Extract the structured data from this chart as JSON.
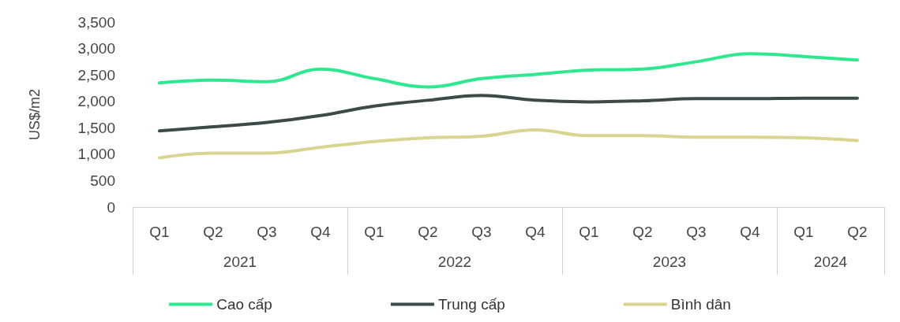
{
  "chart_data": {
    "type": "line",
    "ylabel": "US$/m2",
    "categories": [
      "Q1",
      "Q2",
      "Q3",
      "Q4",
      "Q1",
      "Q2",
      "Q3",
      "Q4",
      "Q1",
      "Q2",
      "Q3",
      "Q4",
      "Q1",
      "Q2"
    ],
    "annotations": [
      "2021",
      "2022",
      "2023",
      "2024"
    ],
    "ylim": [
      0,
      3500
    ],
    "yticks": [
      {
        "value": 0,
        "label": "0"
      },
      {
        "value": 500,
        "label": "500"
      },
      {
        "value": 1000,
        "label": "1,000"
      },
      {
        "value": 1500,
        "label": "1,500"
      },
      {
        "value": 2000,
        "label": "2,000"
      },
      {
        "value": 2500,
        "label": "2,500"
      },
      {
        "value": 3000,
        "label": "3,000"
      },
      {
        "value": 3500,
        "label": "3,500"
      }
    ],
    "series": [
      {
        "name": "Cao cấp",
        "color": "#2ee88f",
        "values": [
          2350,
          2400,
          2370,
          2610,
          2430,
          2270,
          2430,
          2510,
          2590,
          2610,
          2750,
          2900,
          2850,
          2780
        ]
      },
      {
        "name": "Trung cấp",
        "color": "#3d4a4a",
        "values": [
          1440,
          1520,
          1600,
          1730,
          1910,
          2020,
          2110,
          2020,
          1990,
          2010,
          2050,
          2050,
          2060,
          2060
        ]
      },
      {
        "name": "Bình dân",
        "color": "#d9d48f",
        "values": [
          930,
          1020,
          1020,
          1130,
          1240,
          1310,
          1340,
          1460,
          1350,
          1350,
          1320,
          1320,
          1310,
          1260
        ]
      }
    ],
    "grid": false,
    "legend": "bottom",
    "marker": "none",
    "line_style": "solid"
  }
}
